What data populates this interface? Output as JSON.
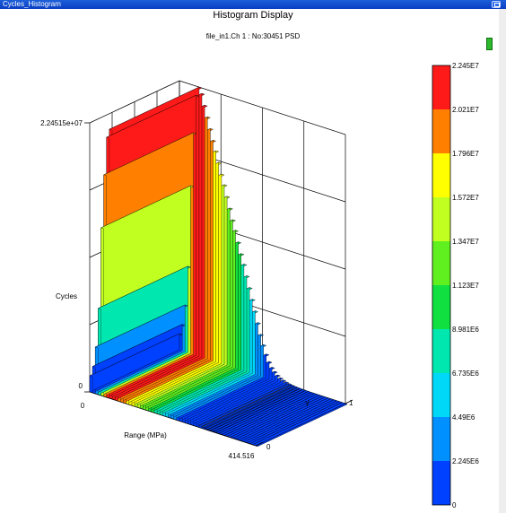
{
  "window": {
    "title": "Cycles_Histogram"
  },
  "header": {
    "title": "Histogram Display",
    "subtitle": "file_in1.Ch 1 : No:30451  PSD"
  },
  "colors": {
    "titlebar": "#0a3ec4",
    "indicator": "#2db82d"
  },
  "chart_data": {
    "type": "3d-surface-histogram",
    "zlabel": "Cycles",
    "xlabel": "Range (MPa)",
    "ylabel": "Y",
    "z_ticks": [
      "2.24515e+07",
      "0"
    ],
    "x_ticks": [
      "0",
      "414.516"
    ],
    "y_ticks": [
      "0",
      "1"
    ],
    "zlim": [
      0,
      22451500
    ],
    "xlim": [
      0,
      414.516
    ],
    "ylim": [
      0,
      1
    ],
    "x": [
      0,
      7,
      14,
      21,
      28,
      35,
      42,
      49,
      56,
      63,
      70,
      77,
      84,
      91,
      98,
      105,
      112,
      119,
      126,
      133,
      140,
      147,
      154,
      161,
      168,
      175,
      182,
      189,
      196,
      203,
      210,
      217,
      224,
      231,
      238,
      245,
      252,
      259,
      266,
      273,
      280,
      287,
      294,
      301,
      308,
      315,
      322,
      329,
      336,
      343,
      350,
      357,
      364,
      371,
      378,
      385,
      392,
      399,
      406,
      414.516
    ],
    "values": [
      1350000,
      2200000,
      3900000,
      7200000,
      14000000,
      18500000,
      21700000,
      22451500,
      22000000,
      21100000,
      20200000,
      19300000,
      18400000,
      17600000,
      16700000,
      15800000,
      15000000,
      14100000,
      13200000,
      12300000,
      11500000,
      10600000,
      9700000,
      8900000,
      8000000,
      7100000,
      6200000,
      5300000,
      4400000,
      3500000,
      2700000,
      2000000,
      1450000,
      1050000,
      780000,
      560000,
      400000,
      290000,
      210000,
      150000,
      110000,
      80000,
      60000,
      45000,
      35000,
      26000,
      20000,
      15000,
      11000,
      8000,
      6000,
      4500,
      3500,
      2700,
      2000,
      1500,
      1200,
      900,
      600,
      300
    ],
    "colorbar": {
      "labels": [
        "2.245E7",
        "2.021E7",
        "1.796E7",
        "1.572E7",
        "1.347E7",
        "1.123E7",
        "8.981E6",
        "6.735E6",
        "4.49E6",
        "2.245E6",
        "0"
      ],
      "colors": [
        "#ff1a1a",
        "#ff8000",
        "#ffff00",
        "#c0ff20",
        "#60f020",
        "#10e040",
        "#00e8b0",
        "#00d8f8",
        "#0090ff",
        "#0040ff"
      ]
    }
  }
}
